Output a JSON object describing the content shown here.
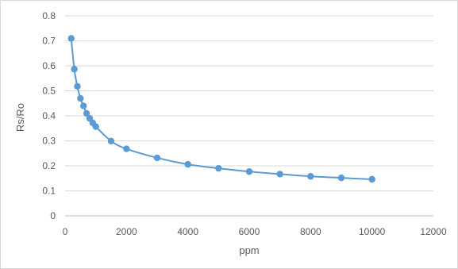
{
  "chart_data": {
    "type": "scatter",
    "title": "",
    "xlabel": "ppm",
    "ylabel": "Rs/Ro",
    "xlim": [
      0,
      12000
    ],
    "ylim": [
      0,
      0.8
    ],
    "x_ticks": [
      0,
      2000,
      4000,
      6000,
      8000,
      10000,
      12000
    ],
    "y_ticks": [
      0,
      0.1,
      0.2,
      0.3,
      0.4,
      0.5,
      0.6,
      0.7,
      0.8
    ],
    "x_tick_labels": [
      "0",
      "2000",
      "4000",
      "6000",
      "8000",
      "10000",
      "12000"
    ],
    "y_tick_labels": [
      "0",
      "0.1",
      "0.2",
      "0.3",
      "0.4",
      "0.5",
      "0.6",
      "0.7",
      "0.8"
    ],
    "grid": "horizontal",
    "legend": "none",
    "series": [
      {
        "x": [
          200,
          300,
          400,
          500,
          600,
          700,
          800,
          900,
          1000,
          1500,
          2000,
          3000,
          4000,
          5000,
          6000,
          7000,
          8000,
          9000,
          10000
        ],
        "y": [
          0.71,
          0.587,
          0.518,
          0.47,
          0.44,
          0.41,
          0.39,
          0.372,
          0.357,
          0.299,
          0.268,
          0.232,
          0.206,
          0.19,
          0.177,
          0.167,
          0.158,
          0.152,
          0.146
        ],
        "marker": "circle",
        "smooth": true
      }
    ],
    "colors": {
      "series": "#5b9bd5",
      "grid": "#d9d9d9",
      "axis": "#bfbfbf",
      "text": "#595959"
    }
  }
}
